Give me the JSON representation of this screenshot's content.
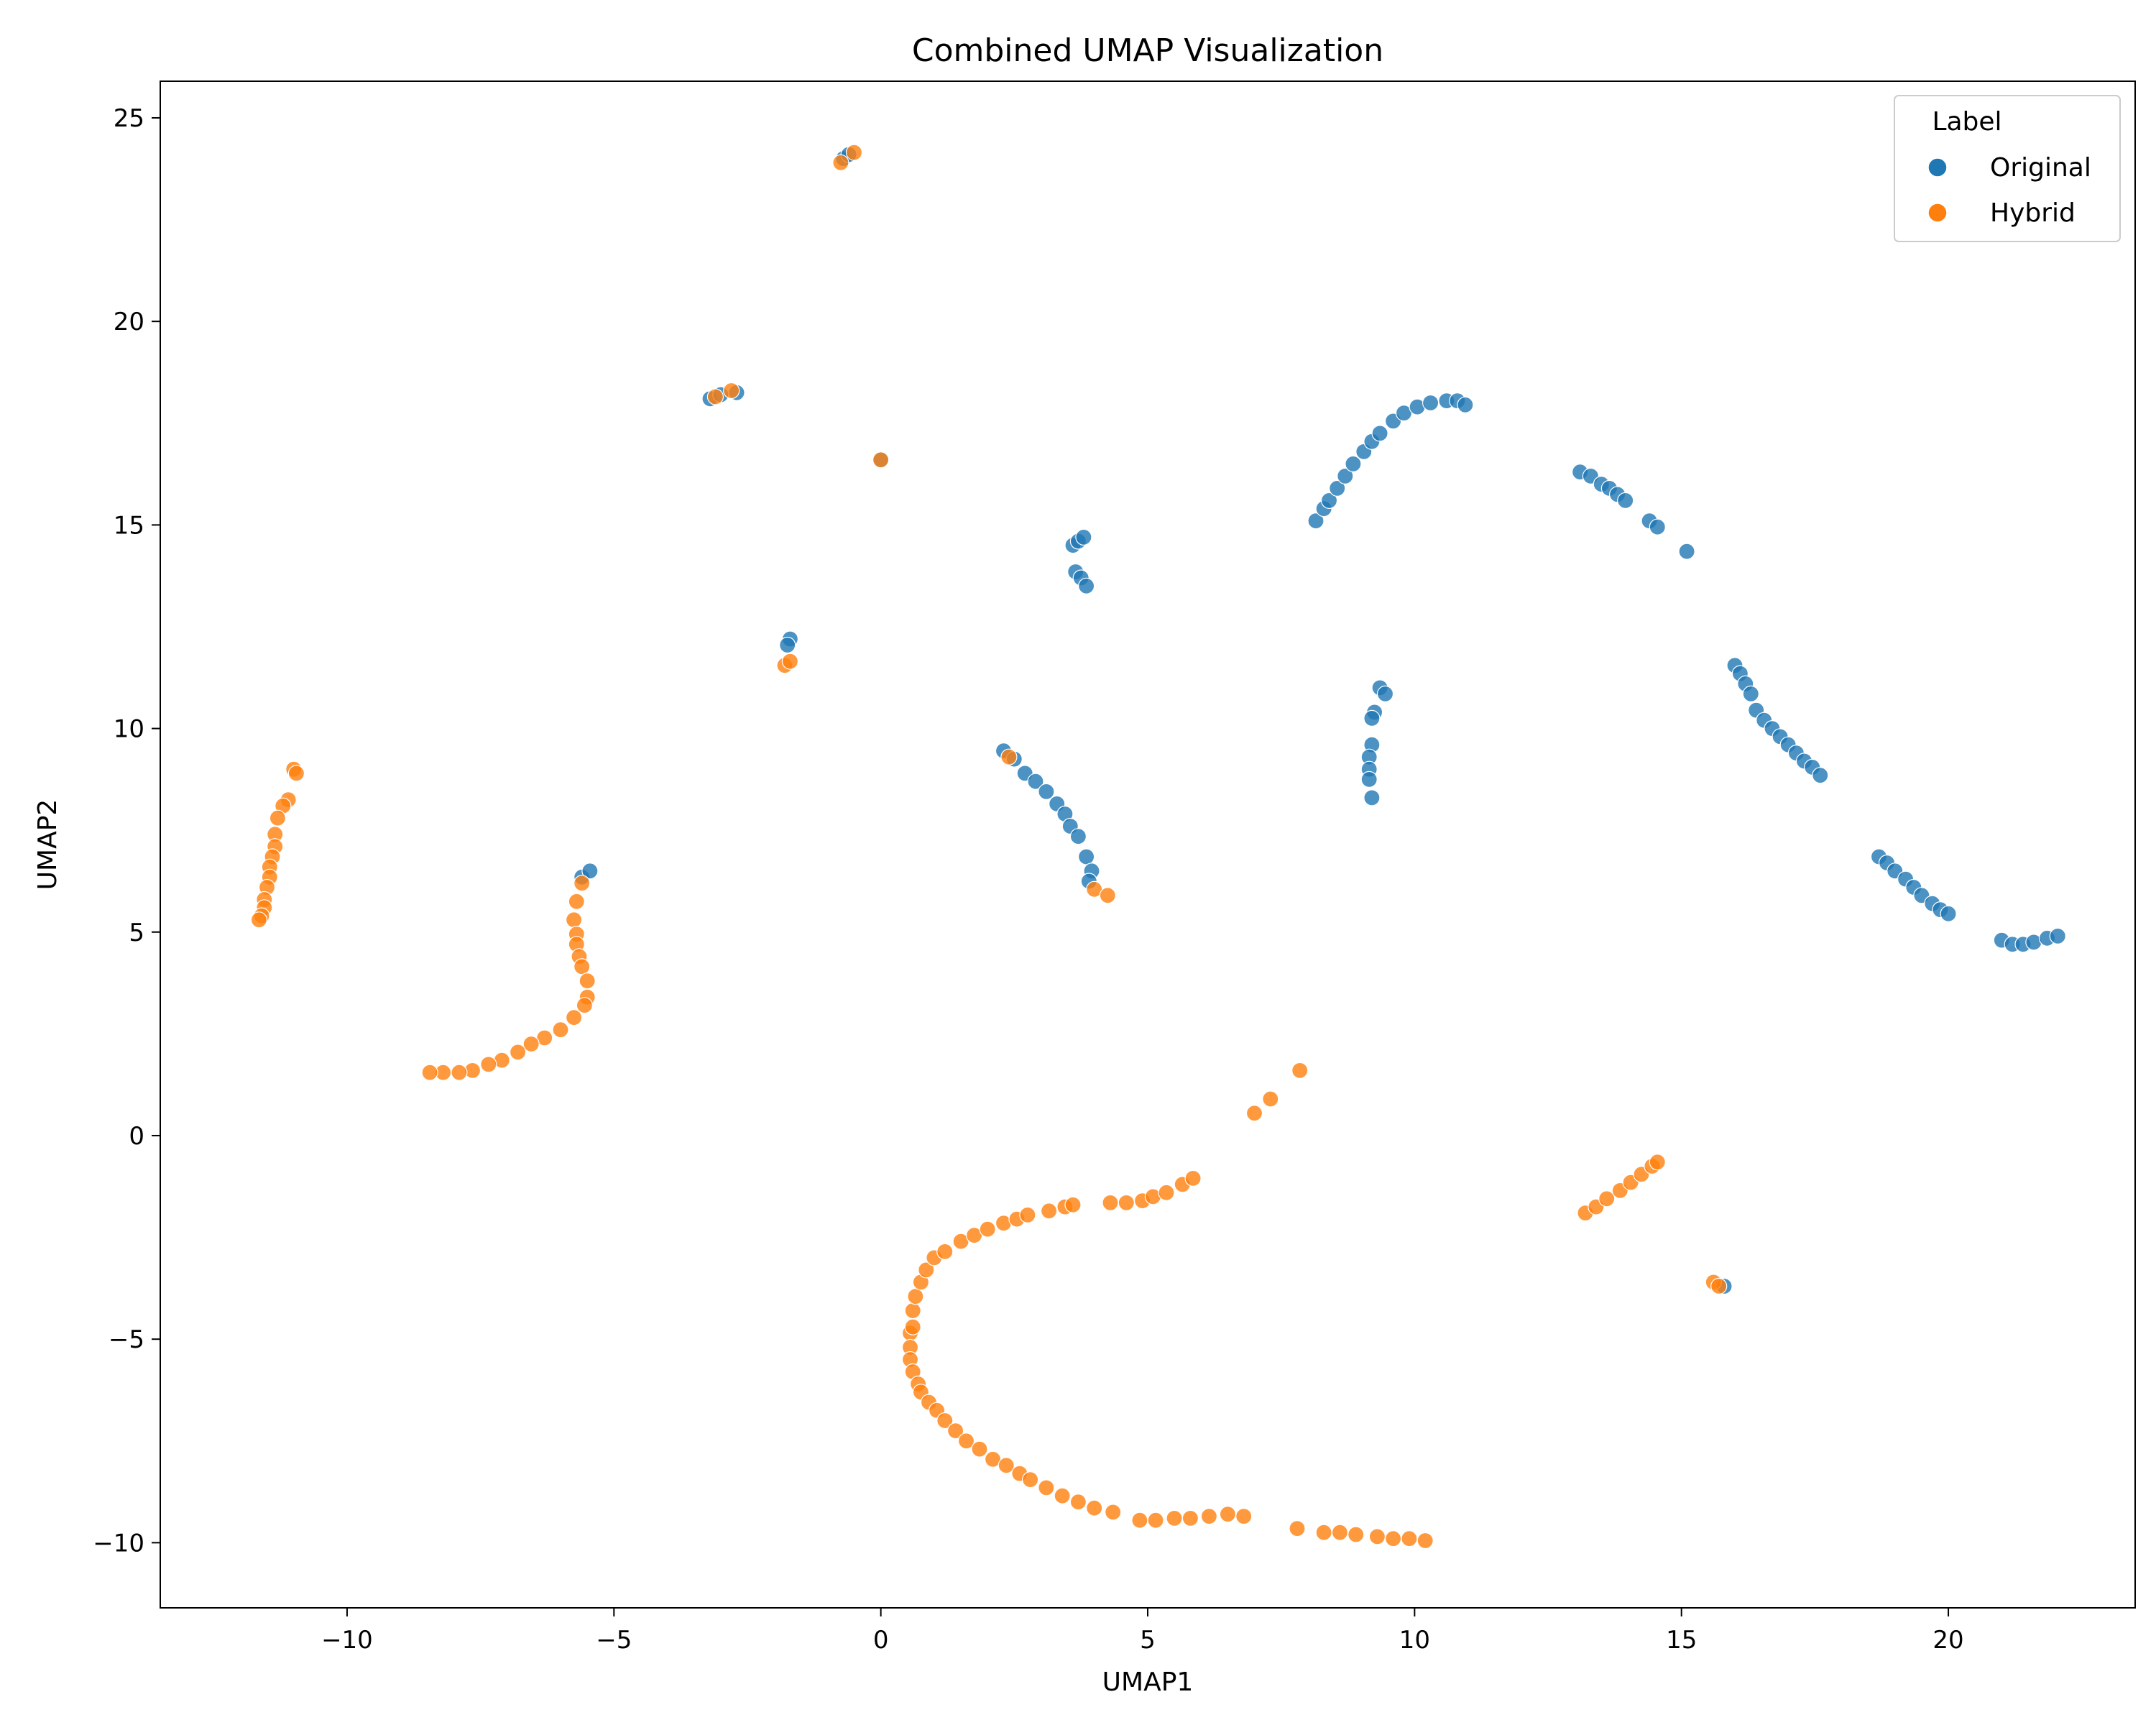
{
  "chart_data": {
    "type": "scatter",
    "title": "Combined UMAP Visualization",
    "xlabel": "UMAP1",
    "ylabel": "UMAP2",
    "xlim": [
      -13.5,
      23.5
    ],
    "ylim": [
      -11.6,
      25.9
    ],
    "xticks": [
      -10,
      -5,
      0,
      5,
      10,
      15,
      20
    ],
    "yticks": [
      -10,
      -5,
      0,
      5,
      10,
      15,
      20,
      25
    ],
    "xtick_labels": [
      "−10",
      "−5",
      "0",
      "5",
      "10",
      "15",
      "20"
    ],
    "ytick_labels": [
      "−10",
      "−5",
      "0",
      "5",
      "10",
      "15",
      "20",
      "25"
    ],
    "grid": false,
    "legend": {
      "title": "Label",
      "position": "top-right"
    },
    "series": [
      {
        "name": "Original",
        "color": "#1f77b4",
        "points": [
          [
            -0.7,
            24.0
          ],
          [
            -0.6,
            24.1
          ],
          [
            -3.2,
            18.1
          ],
          [
            -3.0,
            18.2
          ],
          [
            -2.7,
            18.25
          ],
          [
            0.0,
            16.6
          ],
          [
            -1.7,
            12.2
          ],
          [
            -1.75,
            12.05
          ],
          [
            3.6,
            14.5
          ],
          [
            3.7,
            14.6
          ],
          [
            3.8,
            14.7
          ],
          [
            3.65,
            13.85
          ],
          [
            3.75,
            13.7
          ],
          [
            3.85,
            13.5
          ],
          [
            8.15,
            15.1
          ],
          [
            8.3,
            15.4
          ],
          [
            8.4,
            15.6
          ],
          [
            8.55,
            15.9
          ],
          [
            8.7,
            16.2
          ],
          [
            8.85,
            16.5
          ],
          [
            9.05,
            16.8
          ],
          [
            9.2,
            17.05
          ],
          [
            9.35,
            17.25
          ],
          [
            9.6,
            17.55
          ],
          [
            9.8,
            17.75
          ],
          [
            10.05,
            17.9
          ],
          [
            10.3,
            18.0
          ],
          [
            10.6,
            18.05
          ],
          [
            10.8,
            18.05
          ],
          [
            10.95,
            17.95
          ],
          [
            13.1,
            16.3
          ],
          [
            13.3,
            16.2
          ],
          [
            13.5,
            16.0
          ],
          [
            13.65,
            15.9
          ],
          [
            13.8,
            15.75
          ],
          [
            13.95,
            15.6
          ],
          [
            14.4,
            15.1
          ],
          [
            14.55,
            14.95
          ],
          [
            15.1,
            14.35
          ],
          [
            9.35,
            11.0
          ],
          [
            9.45,
            10.85
          ],
          [
            9.25,
            10.4
          ],
          [
            9.2,
            10.25
          ],
          [
            9.2,
            9.6
          ],
          [
            9.15,
            9.3
          ],
          [
            9.15,
            9.0
          ],
          [
            9.15,
            8.75
          ],
          [
            9.2,
            8.3
          ],
          [
            2.3,
            9.45
          ],
          [
            2.5,
            9.25
          ],
          [
            2.7,
            8.9
          ],
          [
            2.9,
            8.7
          ],
          [
            3.1,
            8.45
          ],
          [
            3.3,
            8.15
          ],
          [
            3.45,
            7.9
          ],
          [
            3.55,
            7.6
          ],
          [
            3.7,
            7.35
          ],
          [
            3.85,
            6.85
          ],
          [
            3.95,
            6.5
          ],
          [
            3.9,
            6.25
          ],
          [
            -5.6,
            6.35
          ],
          [
            -5.45,
            6.5
          ],
          [
            16.0,
            11.55
          ],
          [
            16.1,
            11.35
          ],
          [
            16.2,
            11.1
          ],
          [
            16.3,
            10.85
          ],
          [
            16.4,
            10.45
          ],
          [
            16.55,
            10.2
          ],
          [
            16.7,
            10.0
          ],
          [
            16.85,
            9.8
          ],
          [
            17.0,
            9.6
          ],
          [
            17.15,
            9.4
          ],
          [
            17.3,
            9.2
          ],
          [
            17.45,
            9.05
          ],
          [
            17.6,
            8.85
          ],
          [
            18.7,
            6.85
          ],
          [
            18.85,
            6.7
          ],
          [
            19.0,
            6.5
          ],
          [
            19.2,
            6.3
          ],
          [
            19.35,
            6.1
          ],
          [
            19.5,
            5.9
          ],
          [
            19.7,
            5.7
          ],
          [
            19.85,
            5.55
          ],
          [
            20.0,
            5.45
          ],
          [
            21.0,
            4.8
          ],
          [
            21.2,
            4.7
          ],
          [
            21.4,
            4.7
          ],
          [
            21.6,
            4.75
          ],
          [
            21.85,
            4.85
          ],
          [
            22.05,
            4.9
          ],
          [
            15.8,
            -3.7
          ]
        ]
      },
      {
        "name": "Hybrid",
        "color": "#ff7f0e",
        "points": [
          [
            -0.75,
            23.9
          ],
          [
            -0.5,
            24.15
          ],
          [
            -3.1,
            18.15
          ],
          [
            -2.8,
            18.3
          ],
          [
            0.0,
            16.6
          ],
          [
            -1.8,
            11.55
          ],
          [
            -1.7,
            11.65
          ],
          [
            2.4,
            9.3
          ],
          [
            4.0,
            6.05
          ],
          [
            4.25,
            5.9
          ],
          [
            -11.0,
            9.0
          ],
          [
            -10.95,
            8.9
          ],
          [
            -11.1,
            8.25
          ],
          [
            -11.2,
            8.1
          ],
          [
            -11.3,
            7.8
          ],
          [
            -11.35,
            7.4
          ],
          [
            -11.35,
            7.1
          ],
          [
            -11.4,
            6.85
          ],
          [
            -11.45,
            6.6
          ],
          [
            -11.45,
            6.35
          ],
          [
            -11.5,
            6.1
          ],
          [
            -11.55,
            5.8
          ],
          [
            -11.55,
            5.6
          ],
          [
            -11.6,
            5.4
          ],
          [
            -11.65,
            5.3
          ],
          [
            -5.6,
            6.2
          ],
          [
            -5.7,
            5.75
          ],
          [
            -5.75,
            5.3
          ],
          [
            -5.7,
            4.95
          ],
          [
            -5.7,
            4.7
          ],
          [
            -5.65,
            4.4
          ],
          [
            -5.6,
            4.15
          ],
          [
            -5.5,
            3.8
          ],
          [
            -5.5,
            3.4
          ],
          [
            -5.55,
            3.2
          ],
          [
            -5.75,
            2.9
          ],
          [
            -6.0,
            2.6
          ],
          [
            -6.3,
            2.4
          ],
          [
            -6.55,
            2.25
          ],
          [
            -6.8,
            2.05
          ],
          [
            -7.1,
            1.85
          ],
          [
            -7.35,
            1.75
          ],
          [
            -7.65,
            1.6
          ],
          [
            -7.9,
            1.55
          ],
          [
            -8.2,
            1.55
          ],
          [
            -8.45,
            1.55
          ],
          [
            7.0,
            0.55
          ],
          [
            7.3,
            0.9
          ],
          [
            7.85,
            1.6
          ],
          [
            0.55,
            -4.85
          ],
          [
            0.55,
            -5.2
          ],
          [
            0.6,
            -4.7
          ],
          [
            0.55,
            -5.5
          ],
          [
            0.6,
            -5.8
          ],
          [
            0.7,
            -6.1
          ],
          [
            0.75,
            -6.3
          ],
          [
            0.9,
            -6.55
          ],
          [
            1.05,
            -6.75
          ],
          [
            1.2,
            -7.0
          ],
          [
            1.4,
            -7.25
          ],
          [
            1.6,
            -7.5
          ],
          [
            1.85,
            -7.7
          ],
          [
            2.1,
            -7.95
          ],
          [
            2.35,
            -8.1
          ],
          [
            2.6,
            -8.3
          ],
          [
            2.8,
            -8.45
          ],
          [
            3.1,
            -8.65
          ],
          [
            3.4,
            -8.85
          ],
          [
            3.7,
            -9.0
          ],
          [
            4.0,
            -9.15
          ],
          [
            4.35,
            -9.25
          ],
          [
            4.85,
            -9.45
          ],
          [
            5.15,
            -9.45
          ],
          [
            5.5,
            -9.4
          ],
          [
            5.8,
            -9.4
          ],
          [
            6.15,
            -9.35
          ],
          [
            6.5,
            -9.3
          ],
          [
            6.8,
            -9.35
          ],
          [
            7.8,
            -9.65
          ],
          [
            8.3,
            -9.75
          ],
          [
            8.6,
            -9.75
          ],
          [
            8.9,
            -9.8
          ],
          [
            9.3,
            -9.85
          ],
          [
            9.6,
            -9.9
          ],
          [
            9.9,
            -9.9
          ],
          [
            10.2,
            -9.95
          ],
          [
            0.6,
            -4.3
          ],
          [
            0.65,
            -3.95
          ],
          [
            0.75,
            -3.6
          ],
          [
            0.85,
            -3.3
          ],
          [
            1.0,
            -3.0
          ],
          [
            1.2,
            -2.85
          ],
          [
            1.5,
            -2.6
          ],
          [
            1.75,
            -2.45
          ],
          [
            2.0,
            -2.3
          ],
          [
            2.3,
            -2.15
          ],
          [
            2.55,
            -2.05
          ],
          [
            2.75,
            -1.95
          ],
          [
            3.15,
            -1.85
          ],
          [
            3.45,
            -1.75
          ],
          [
            3.6,
            -1.7
          ],
          [
            4.3,
            -1.65
          ],
          [
            4.6,
            -1.65
          ],
          [
            4.9,
            -1.6
          ],
          [
            5.1,
            -1.5
          ],
          [
            5.35,
            -1.4
          ],
          [
            5.65,
            -1.2
          ],
          [
            5.85,
            -1.05
          ],
          [
            13.2,
            -1.9
          ],
          [
            13.4,
            -1.75
          ],
          [
            13.6,
            -1.55
          ],
          [
            13.85,
            -1.35
          ],
          [
            14.05,
            -1.15
          ],
          [
            14.25,
            -0.95
          ],
          [
            14.45,
            -0.75
          ],
          [
            14.55,
            -0.65
          ],
          [
            15.6,
            -3.6
          ],
          [
            15.7,
            -3.7
          ]
        ]
      }
    ]
  }
}
